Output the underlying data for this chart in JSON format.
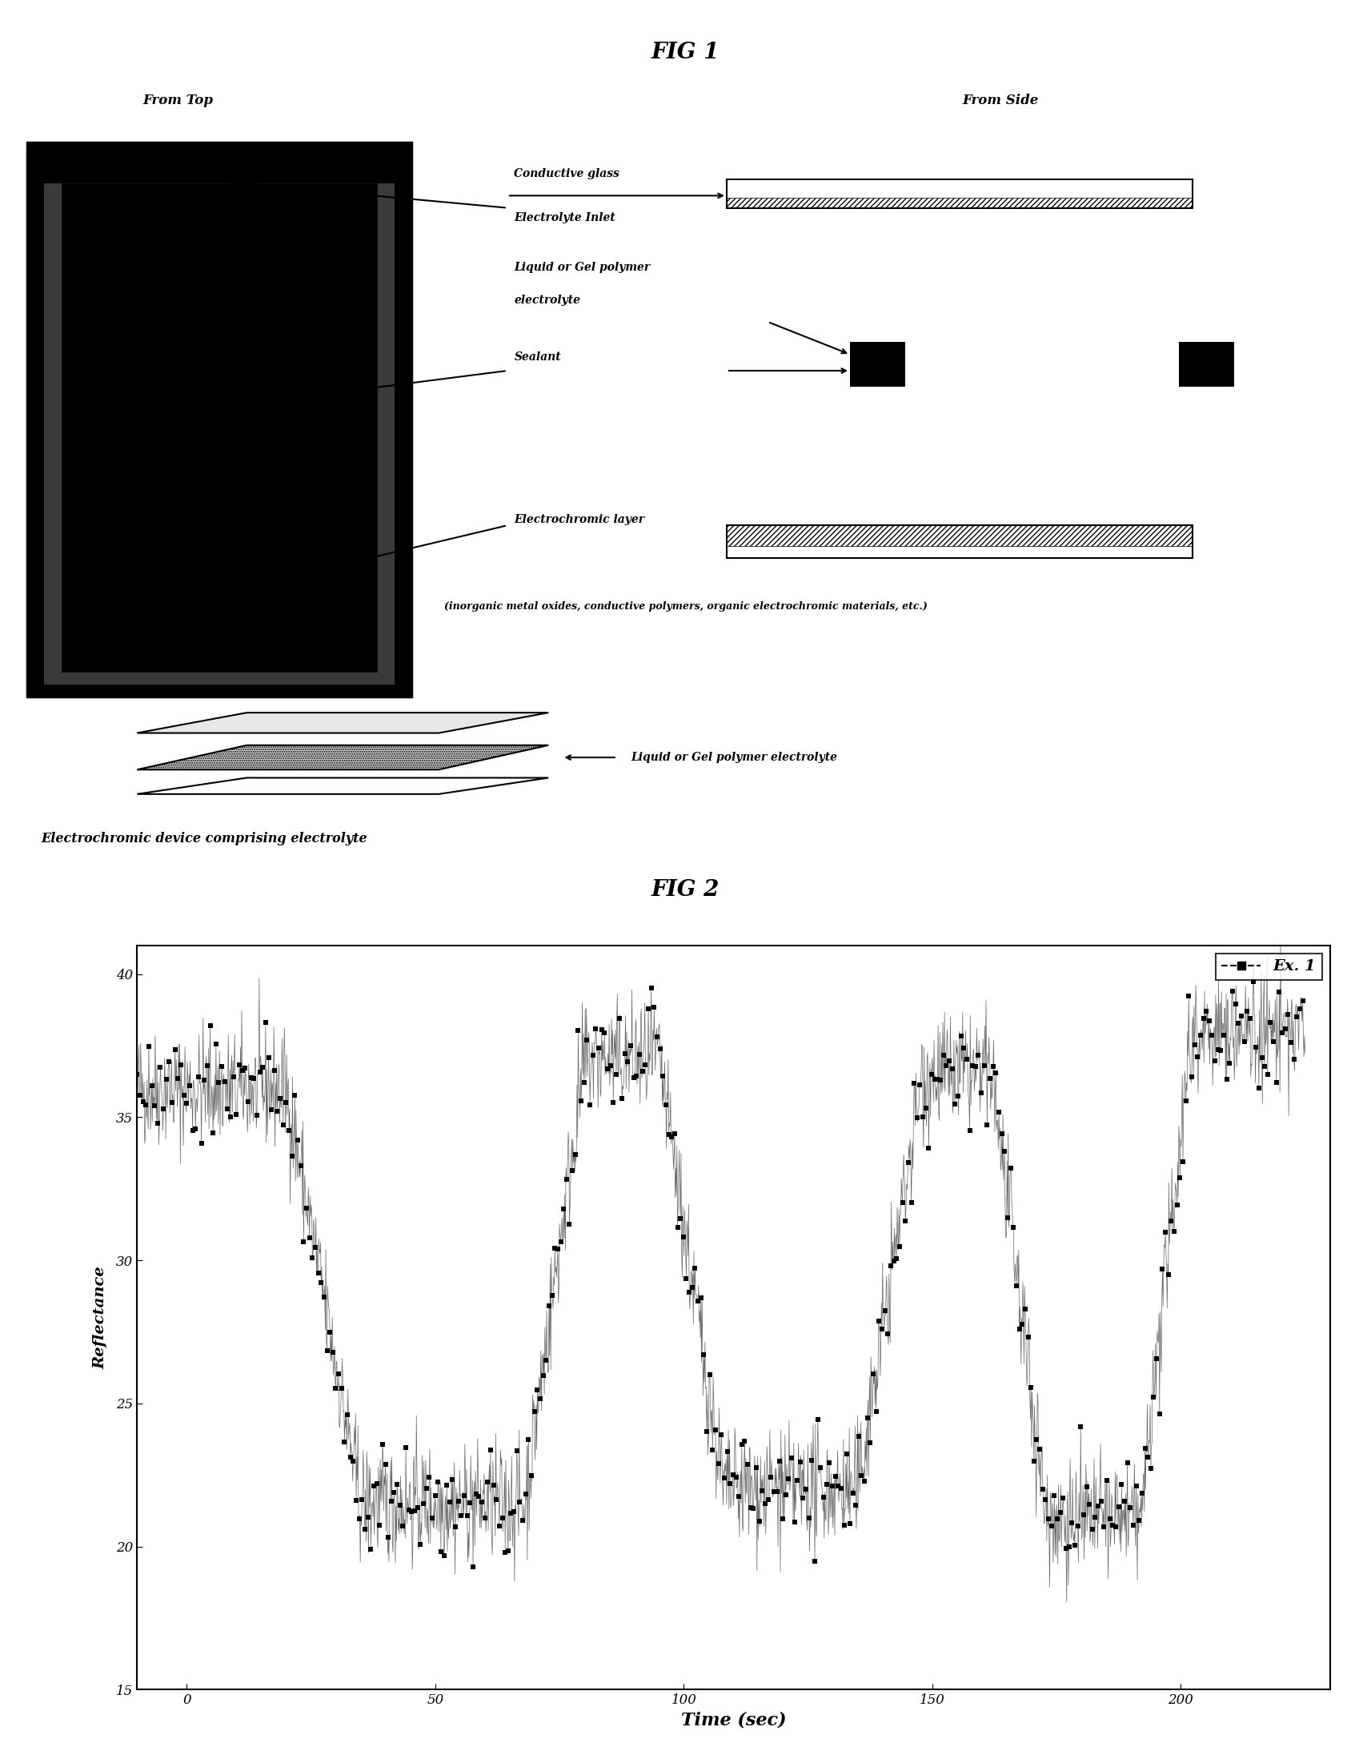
{
  "fig1_title": "FIG 1",
  "fig2_title": "FIG 2",
  "from_top_label": "From Top",
  "from_side_label": "From Side",
  "labels": {
    "conductive_glass": "Conductive glass",
    "electrolyte_inlet": "Electrolyte Inlet",
    "liquid_gel_line1": "Liquid or Gel polymer",
    "liquid_gel_line2": "electrolyte",
    "sealant": "Sealant",
    "electrochromic_layer": "Electrochromic layer",
    "inorganic_note": "(inorganic metal oxides, conductive polymers, organic electrochromic materials, etc.)",
    "liquid_gel_arrow_label": "Liquid or Gel polymer electrolyte",
    "device_label": "Electrochromic device comprising electrolyte"
  },
  "plot": {
    "xlabel": "Time (sec)",
    "ylabel": "Reflectance",
    "xlim": [
      -10,
      230
    ],
    "ylim": [
      15,
      41
    ],
    "yticks": [
      15,
      20,
      25,
      30,
      35,
      40
    ],
    "xticks": [
      0,
      50,
      100,
      150,
      200
    ],
    "legend_label": "Ex. 1",
    "background": "#ffffff",
    "line_color": "#000000"
  }
}
